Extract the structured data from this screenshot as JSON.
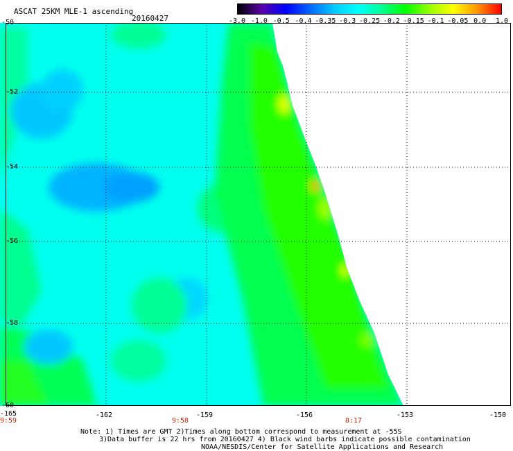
{
  "header": {
    "title": "ASCAT 25KM MLE-1 ascending",
    "date": "20160427"
  },
  "colorbar": {
    "labels": [
      "-3.0",
      "-1.0",
      "-0.5",
      "-0.4",
      "-0.35",
      "-0.3",
      "-0.25",
      "-0.2",
      "-0.15",
      "-0.1",
      "-0.05",
      "0.0",
      "1.0"
    ],
    "colors": [
      "#000000",
      "#5a00a8",
      "#0000ff",
      "#0064ff",
      "#00c8ff",
      "#00ffff",
      "#00ff96",
      "#00ff00",
      "#96ff00",
      "#ffff00",
      "#ff9600",
      "#ff0000"
    ]
  },
  "axes": {
    "lat_labels": [
      "-50",
      "-52",
      "-54",
      "-56",
      "-58",
      "-60"
    ],
    "lon_labels": [
      "-165",
      "-162",
      "-159",
      "-156",
      "-153",
      "-150"
    ],
    "times": [
      "9:59",
      "9:58",
      "8:17"
    ]
  },
  "notes": {
    "line1": "Note: 1) Times are GMT 2)Times along bottom correspond to measurement at -55S",
    "line2": "3)Data buffer is 22 hrs from 20160427 4) Black wind barbs indicate possible contamination",
    "line3": "NOAA/NESDIS/Center for Satellite Applications and Research"
  }
}
